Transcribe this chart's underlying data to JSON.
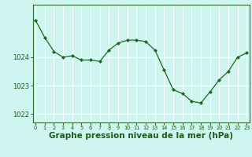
{
  "x": [
    0,
    1,
    2,
    3,
    4,
    5,
    6,
    7,
    8,
    9,
    10,
    11,
    12,
    13,
    14,
    15,
    16,
    17,
    18,
    19,
    20,
    21,
    22,
    23
  ],
  "y": [
    1025.3,
    1024.7,
    1024.2,
    1024.0,
    1024.05,
    1023.9,
    1023.9,
    1023.85,
    1024.25,
    1024.5,
    1024.6,
    1024.6,
    1024.55,
    1024.25,
    1023.55,
    1022.85,
    1022.72,
    1022.45,
    1022.38,
    1022.78,
    1023.2,
    1023.5,
    1024.0,
    1024.15
  ],
  "line_color": "#1a6b1a",
  "marker": "D",
  "marker_size": 2.0,
  "bg_color": "#cef5f0",
  "grid_color": "#ffffff",
  "axis_color": "#2d6b2d",
  "tick_color": "#1a5c1a",
  "xlabel": "Graphe pression niveau de la mer (hPa)",
  "xlabel_fontsize": 7.5,
  "ylim": [
    1021.7,
    1025.85
  ],
  "yticks": [
    1022,
    1023,
    1024
  ],
  "xtick_labels": [
    "0",
    "1",
    "2",
    "3",
    "4",
    "5",
    "6",
    "7",
    "8",
    "9",
    "10",
    "11",
    "12",
    "13",
    "14",
    "15",
    "16",
    "17",
    "18",
    "19",
    "20",
    "21",
    "22",
    "23"
  ],
  "xlim": [
    -0.3,
    23.3
  ]
}
